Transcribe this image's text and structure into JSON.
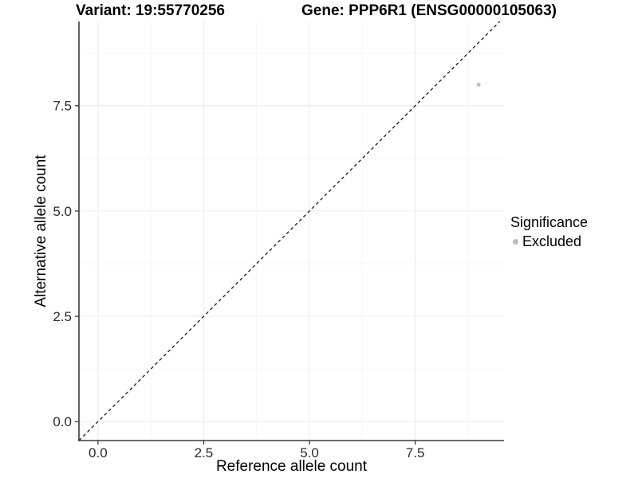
{
  "chart_data": {
    "type": "scatter",
    "title_left": "Variant: 19:55770256",
    "title_right": "Gene: PPP6R1 (ENSG00000105063)",
    "title": "Variant: 19:55770256   Gene: PPP6R1 (ENSG00000105063)",
    "xlabel": "Reference allele count",
    "ylabel": "Alternative allele count",
    "xlim": [
      -0.45,
      9.6
    ],
    "ylim": [
      -0.45,
      9.5
    ],
    "xticks": {
      "values": [
        0,
        2.5,
        5,
        7.5
      ],
      "labels": [
        "0.0",
        "2.5",
        "5.0",
        "7.5"
      ]
    },
    "yticks": {
      "values": [
        0,
        2.5,
        5,
        7.5
      ],
      "labels": [
        "0.0",
        "2.5",
        "5.0",
        "7.5"
      ]
    },
    "grid": "on",
    "minor_gridlines": {
      "x": [
        1.25,
        3.75,
        6.25,
        8.75
      ],
      "y": [
        1.25,
        3.75,
        6.25,
        8.75
      ]
    },
    "points": [
      {
        "x": 9,
        "y": 8,
        "significance": "Excluded"
      }
    ],
    "reference_line": {
      "type": "identity",
      "equation": "y = x",
      "style": "dashed"
    },
    "legend": {
      "title": "Significance",
      "position": "right",
      "entries": [
        {
          "label": "Excluded",
          "color": "#bdbdbd",
          "marker": "circle"
        }
      ]
    },
    "colors": {
      "point": "#c2c2c2",
      "grid_major": "#ebebeb",
      "grid_minor": "#f6f6f6",
      "axis_line": "#3b3b3b",
      "reference_line": "#1a1a1a",
      "tick_label": "#2b2b2b",
      "background": "#ffffff"
    }
  }
}
